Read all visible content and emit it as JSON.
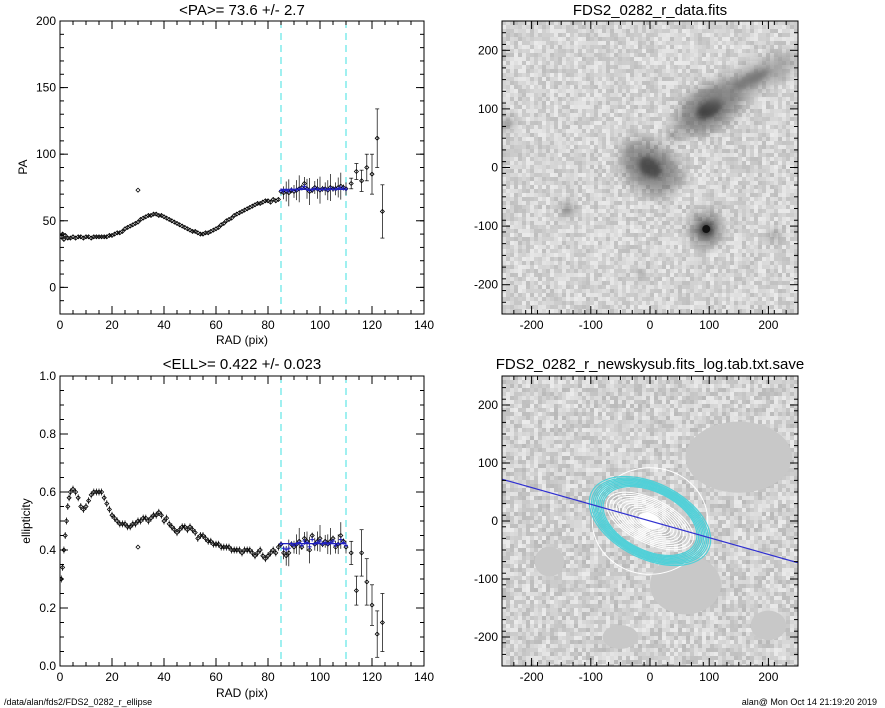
{
  "footer": {
    "path": "/data/alan/fds2/FDS2_0282_r_ellipse",
    "user_time": "alan@  Mon Oct 14 21:19:20 2019"
  },
  "colors": {
    "cyan": "#40e0e0",
    "blue": "#2020c0",
    "black": "#000000"
  },
  "chart_data": [
    {
      "id": "pa",
      "type": "scatter",
      "title": "<PA>= 73.6 +/-   2.7",
      "xlabel": "RAD (pix)",
      "ylabel": "PA",
      "xlim": [
        0,
        140
      ],
      "ylim": [
        -20,
        200
      ],
      "xticks": [
        0,
        20,
        40,
        60,
        80,
        100,
        120,
        140
      ],
      "yticks": [
        0,
        50,
        100,
        150,
        200
      ],
      "vlines": [
        85,
        110
      ],
      "mean": 73.6,
      "error": 2.7,
      "fit_range": [
        85,
        110
      ],
      "main_points": [
        [
          0.5,
          38
        ],
        [
          1,
          40
        ],
        [
          1.5,
          36
        ],
        [
          2,
          39
        ],
        [
          3,
          37
        ],
        [
          4,
          37
        ],
        [
          5,
          38
        ],
        [
          6,
          37
        ],
        [
          7,
          38
        ],
        [
          8,
          38
        ],
        [
          9,
          37
        ],
        [
          10,
          38
        ],
        [
          11,
          38
        ],
        [
          12,
          37
        ],
        [
          13,
          38
        ],
        [
          14,
          38
        ],
        [
          15,
          38
        ],
        [
          16,
          38
        ],
        [
          17,
          38
        ],
        [
          18,
          38
        ],
        [
          19,
          39
        ],
        [
          20,
          39
        ],
        [
          21,
          40
        ],
        [
          22,
          41
        ],
        [
          23,
          41
        ],
        [
          24,
          42
        ],
        [
          25,
          44
        ],
        [
          26,
          45
        ],
        [
          27,
          46
        ],
        [
          28,
          47
        ],
        [
          29,
          48
        ],
        [
          30,
          49
        ],
        [
          31,
          51
        ],
        [
          32,
          52
        ],
        [
          33,
          53
        ],
        [
          34,
          54
        ],
        [
          35,
          54
        ],
        [
          36,
          55
        ],
        [
          37,
          55
        ],
        [
          38,
          54
        ],
        [
          39,
          54
        ],
        [
          40,
          53
        ],
        [
          41,
          52
        ],
        [
          42,
          51
        ],
        [
          43,
          50
        ],
        [
          44,
          49
        ],
        [
          45,
          48
        ],
        [
          46,
          47
        ],
        [
          47,
          46
        ],
        [
          48,
          45
        ],
        [
          49,
          44
        ],
        [
          50,
          43
        ],
        [
          51,
          42
        ],
        [
          52,
          42
        ],
        [
          53,
          41
        ],
        [
          54,
          40
        ],
        [
          55,
          40
        ],
        [
          56,
          41
        ],
        [
          57,
          41
        ],
        [
          58,
          42
        ],
        [
          59,
          43
        ],
        [
          60,
          44
        ],
        [
          61,
          45
        ],
        [
          62,
          47
        ],
        [
          63,
          48
        ],
        [
          64,
          50
        ],
        [
          65,
          51
        ],
        [
          66,
          52
        ],
        [
          67,
          54
        ],
        [
          68,
          55
        ],
        [
          69,
          56
        ],
        [
          70,
          57
        ],
        [
          71,
          58
        ],
        [
          72,
          59
        ],
        [
          73,
          60
        ],
        [
          74,
          61
        ],
        [
          75,
          62
        ],
        [
          76,
          63
        ],
        [
          77,
          63
        ],
        [
          78,
          64
        ],
        [
          79,
          65
        ],
        [
          80,
          65
        ],
        [
          81,
          64
        ],
        [
          82,
          66
        ],
        [
          83,
          65
        ],
        [
          84,
          66
        ]
      ],
      "main_points_error": 1.5,
      "outlier": [
        30,
        73
      ],
      "fit_points": [
        [
          85,
          72
        ],
        [
          86,
          71
        ],
        [
          87,
          72
        ],
        [
          88,
          71
        ],
        [
          89,
          73
        ],
        [
          90,
          72
        ],
        [
          91,
          73
        ],
        [
          92,
          74
        ],
        [
          93,
          75
        ],
        [
          94,
          78
        ],
        [
          95,
          74
        ],
        [
          96,
          72
        ],
        [
          97,
          73
        ],
        [
          98,
          75
        ],
        [
          99,
          74
        ],
        [
          100,
          73
        ],
        [
          101,
          74
        ],
        [
          102,
          74
        ],
        [
          103,
          73
        ],
        [
          104,
          75
        ],
        [
          105,
          74
        ],
        [
          106,
          74
        ],
        [
          107,
          75
        ],
        [
          108,
          76
        ],
        [
          109,
          75
        ],
        [
          110,
          74
        ]
      ],
      "outer_points": [
        [
          112,
          78,
          4
        ],
        [
          114,
          87,
          6
        ],
        [
          116,
          80,
          8
        ],
        [
          118,
          90,
          10
        ],
        [
          120,
          85,
          15
        ],
        [
          122,
          112,
          22
        ],
        [
          124,
          57,
          20
        ]
      ]
    },
    {
      "id": "ell",
      "type": "scatter",
      "title": "<ELL>= 0.422 +/-  0.023",
      "xlabel": "RAD (pix)",
      "ylabel": "ellipticity",
      "xlim": [
        0,
        140
      ],
      "ylim": [
        0,
        1
      ],
      "xticks": [
        0,
        20,
        40,
        60,
        80,
        100,
        120,
        140
      ],
      "yticks": [
        0.0,
        0.2,
        0.4,
        0.6,
        0.8,
        1.0
      ],
      "vlines": [
        85,
        110
      ],
      "mean": 0.422,
      "error": 0.023,
      "fit_range": [
        85,
        110
      ],
      "main_points": [
        [
          0.5,
          0.3
        ],
        [
          1,
          0.34
        ],
        [
          1.5,
          0.4
        ],
        [
          2,
          0.45
        ],
        [
          2.5,
          0.5
        ],
        [
          3,
          0.55
        ],
        [
          3.5,
          0.58
        ],
        [
          4,
          0.6
        ],
        [
          5,
          0.61
        ],
        [
          6,
          0.6
        ],
        [
          7,
          0.58
        ],
        [
          8,
          0.55
        ],
        [
          9,
          0.54
        ],
        [
          10,
          0.55
        ],
        [
          11,
          0.57
        ],
        [
          12,
          0.59
        ],
        [
          13,
          0.6
        ],
        [
          14,
          0.6
        ],
        [
          15,
          0.6
        ],
        [
          16,
          0.6
        ],
        [
          17,
          0.58
        ],
        [
          18,
          0.56
        ],
        [
          19,
          0.54
        ],
        [
          20,
          0.52
        ],
        [
          21,
          0.51
        ],
        [
          22,
          0.5
        ],
        [
          23,
          0.49
        ],
        [
          24,
          0.49
        ],
        [
          25,
          0.49
        ],
        [
          26,
          0.48
        ],
        [
          27,
          0.48
        ],
        [
          28,
          0.49
        ],
        [
          29,
          0.49
        ],
        [
          30,
          0.5
        ],
        [
          31,
          0.5
        ],
        [
          32,
          0.51
        ],
        [
          33,
          0.51
        ],
        [
          34,
          0.5
        ],
        [
          35,
          0.51
        ],
        [
          36,
          0.52
        ],
        [
          37,
          0.52
        ],
        [
          38,
          0.53
        ],
        [
          39,
          0.52
        ],
        [
          40,
          0.5
        ],
        [
          41,
          0.51
        ],
        [
          42,
          0.49
        ],
        [
          43,
          0.48
        ],
        [
          44,
          0.47
        ],
        [
          45,
          0.46
        ],
        [
          46,
          0.47
        ],
        [
          47,
          0.48
        ],
        [
          48,
          0.48
        ],
        [
          49,
          0.47
        ],
        [
          50,
          0.48
        ],
        [
          51,
          0.47
        ],
        [
          52,
          0.46
        ],
        [
          53,
          0.44
        ],
        [
          54,
          0.45
        ],
        [
          55,
          0.45
        ],
        [
          56,
          0.44
        ],
        [
          57,
          0.43
        ],
        [
          58,
          0.43
        ],
        [
          59,
          0.42
        ],
        [
          60,
          0.42
        ],
        [
          61,
          0.42
        ],
        [
          62,
          0.41
        ],
        [
          63,
          0.41
        ],
        [
          64,
          0.41
        ],
        [
          65,
          0.41
        ],
        [
          66,
          0.4
        ],
        [
          67,
          0.4
        ],
        [
          68,
          0.4
        ],
        [
          69,
          0.4
        ],
        [
          70,
          0.39
        ],
        [
          71,
          0.4
        ],
        [
          72,
          0.4
        ],
        [
          73,
          0.4
        ],
        [
          74,
          0.39
        ],
        [
          75,
          0.38
        ],
        [
          76,
          0.39
        ],
        [
          77,
          0.4
        ],
        [
          78,
          0.38
        ],
        [
          79,
          0.37
        ],
        [
          80,
          0.38
        ],
        [
          81,
          0.39
        ],
        [
          82,
          0.4
        ],
        [
          83,
          0.39
        ],
        [
          84,
          0.41
        ]
      ],
      "main_points_error": 0.012,
      "outlier": [
        30,
        0.41
      ],
      "fit_points": [
        [
          85,
          0.42
        ],
        [
          86,
          0.39
        ],
        [
          87,
          0.38
        ],
        [
          88,
          0.39
        ],
        [
          89,
          0.42
        ],
        [
          90,
          0.41
        ],
        [
          91,
          0.42
        ],
        [
          92,
          0.43
        ],
        [
          93,
          0.41
        ],
        [
          94,
          0.44
        ],
        [
          95,
          0.43
        ],
        [
          96,
          0.4
        ],
        [
          97,
          0.45
        ],
        [
          98,
          0.42
        ],
        [
          99,
          0.43
        ],
        [
          100,
          0.44
        ],
        [
          101,
          0.42
        ],
        [
          102,
          0.43
        ],
        [
          103,
          0.42
        ],
        [
          104,
          0.43
        ],
        [
          105,
          0.44
        ],
        [
          106,
          0.41
        ],
        [
          107,
          0.42
        ],
        [
          108,
          0.45
        ],
        [
          109,
          0.43
        ],
        [
          110,
          0.41
        ]
      ],
      "outer_points": [
        [
          112,
          0.39,
          0.04
        ],
        [
          114,
          0.26,
          0.05
        ],
        [
          116,
          0.39,
          0.08
        ],
        [
          118,
          0.29,
          0.08
        ],
        [
          120,
          0.21,
          0.07
        ],
        [
          122,
          0.11,
          0.08
        ],
        [
          124,
          0.15,
          0.1
        ]
      ]
    },
    {
      "id": "img_data",
      "type": "heatmap",
      "title": "FDS2_0282_r_data.fits",
      "xlim": [
        -250,
        250
      ],
      "ylim": [
        -250,
        250
      ],
      "xticks": [
        -200,
        -100,
        0,
        100,
        200
      ],
      "yticks": [
        -200,
        -100,
        0,
        100,
        200
      ],
      "sources": [
        [
          0,
          0,
          55,
          40,
          0.75,
          -35
        ],
        [
          100,
          100,
          60,
          35,
          0.8,
          30
        ],
        [
          170,
          150,
          90,
          25,
          0.5,
          25
        ],
        [
          95,
          -105,
          28,
          28,
          0.85,
          0
        ],
        [
          -140,
          -70,
          12,
          12,
          0.6,
          0
        ],
        [
          -240,
          75,
          12,
          12,
          0.6,
          0
        ],
        [
          210,
          -115,
          12,
          12,
          0.45,
          0
        ],
        [
          40,
          55,
          15,
          10,
          0.5,
          0
        ],
        [
          -15,
          -180,
          10,
          10,
          0.35,
          0
        ],
        [
          55,
          -15,
          9,
          9,
          0.4,
          0
        ]
      ]
    },
    {
      "id": "img_model",
      "type": "heatmap",
      "title": "FDS2_0282_r_newskysub.fits_log.tab.txt.save",
      "xlim": [
        -250,
        250
      ],
      "ylim": [
        -250,
        250
      ],
      "xticks": [
        -200,
        -100,
        0,
        100,
        200
      ],
      "yticks": [
        -200,
        -100,
        0,
        100,
        200
      ],
      "pa_line": {
        "x": [
          -250,
          250
        ],
        "y": [
          72,
          -72
        ]
      },
      "ellipse_pa": 73.6,
      "ellipse_ell": 0.42,
      "white_isophote_sma": [
        8,
        14,
        20,
        26,
        32,
        38,
        44,
        50,
        56,
        62,
        68,
        74,
        80
      ],
      "cyan_isophote_sma": [
        85,
        88,
        91,
        94,
        97,
        100,
        103,
        106,
        110
      ],
      "outer_isophote_sma": [
        125
      ]
    }
  ]
}
